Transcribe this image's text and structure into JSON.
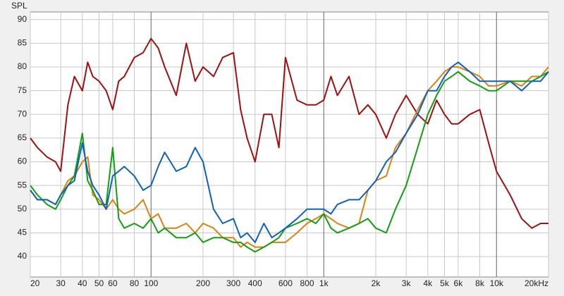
{
  "chart_data": {
    "type": "line",
    "y_label": "SPL",
    "log_x": true,
    "grid": true,
    "xlim": [
      20,
      20000
    ],
    "ylim": [
      35.7,
      91.6
    ],
    "yticks": [
      40,
      45,
      50,
      55,
      60,
      65,
      70,
      75,
      80,
      85,
      90
    ],
    "xticks": [
      20,
      30,
      40,
      50,
      60,
      80,
      100,
      200,
      300,
      400,
      600,
      800,
      {
        "value": 1000,
        "label": "1k"
      },
      {
        "value": 2000,
        "label": "2k"
      },
      {
        "value": 3000,
        "label": "3k"
      },
      {
        "value": 4000,
        "label": "4k"
      },
      {
        "value": 5000,
        "label": "5k"
      },
      {
        "value": 6000,
        "label": "6k"
      },
      {
        "value": 8000,
        "label": "8k"
      },
      {
        "value": 10000,
        "label": "10k"
      },
      {
        "value": 20000,
        "label": "20kHz"
      }
    ],
    "x": [
      20,
      22,
      25,
      28,
      30,
      33,
      36,
      40,
      43,
      46,
      50,
      55,
      60,
      65,
      70,
      80,
      90,
      100,
      110,
      120,
      140,
      160,
      180,
      200,
      230,
      260,
      300,
      330,
      360,
      400,
      450,
      500,
      550,
      600,
      700,
      800,
      900,
      1000,
      1100,
      1200,
      1400,
      1600,
      1800,
      2000,
      2300,
      2600,
      3000,
      3500,
      4000,
      4500,
      5000,
      5500,
      6000,
      7000,
      8000,
      9000,
      10000,
      12000,
      14000,
      16000,
      18000,
      20000
    ],
    "series": [
      {
        "color": "#a01010",
        "values": [
          65,
          63,
          61,
          60,
          58,
          72,
          78,
          75,
          81,
          78,
          77,
          75,
          71,
          77,
          78,
          82,
          83,
          86,
          84,
          80,
          74,
          85,
          77,
          80,
          78,
          82,
          83,
          71,
          65,
          60,
          70,
          70,
          63,
          82,
          73,
          72,
          72,
          73,
          78,
          74,
          78,
          70,
          72,
          70,
          65,
          70,
          74,
          70,
          68,
          73,
          70,
          68,
          68,
          70,
          71,
          64,
          58,
          53,
          48,
          46,
          47,
          47
        ]
      },
      {
        "color": "#e08010",
        "values": [
          54,
          52,
          52,
          51,
          53,
          56,
          57,
          60,
          61,
          53,
          52,
          50,
          52,
          50,
          49,
          50,
          52,
          48,
          49,
          46,
          46,
          47,
          45,
          47,
          46,
          44,
          44,
          42,
          43,
          42,
          42,
          43,
          43,
          43,
          45,
          47,
          48,
          49,
          48,
          47,
          46,
          47,
          54,
          56,
          57,
          63,
          66,
          71,
          75,
          77,
          79,
          80,
          80,
          79,
          78,
          76,
          76,
          77,
          76,
          78,
          78,
          80
        ]
      },
      {
        "color": "#10a010",
        "values": [
          55,
          53,
          51,
          50,
          52,
          55,
          57,
          66,
          56,
          54,
          51,
          51,
          63,
          48,
          46,
          47,
          46,
          48,
          45,
          46,
          44,
          44,
          45,
          43,
          44,
          44,
          43,
          43,
          42,
          41,
          42,
          43,
          44,
          46,
          47,
          48,
          47,
          49,
          46,
          45,
          46,
          47,
          48,
          46,
          45,
          50,
          55,
          63,
          70,
          74,
          77,
          78,
          79,
          77,
          76,
          75,
          75,
          77,
          77,
          77,
          78,
          79
        ]
      },
      {
        "color": "#1060c0",
        "values": [
          54,
          52,
          52,
          51,
          53,
          55,
          56,
          64,
          58,
          55,
          53,
          50,
          57,
          58,
          59,
          57,
          54,
          55,
          59,
          62,
          58,
          59,
          63,
          60,
          50,
          47,
          48,
          44,
          45,
          43,
          47,
          44,
          45,
          46,
          48,
          50,
          50,
          50,
          49,
          51,
          52,
          52,
          54,
          56,
          60,
          62,
          66,
          70,
          75,
          75,
          78,
          80,
          81,
          79,
          77,
          77,
          77,
          77,
          75,
          77,
          77,
          79
        ]
      }
    ]
  }
}
